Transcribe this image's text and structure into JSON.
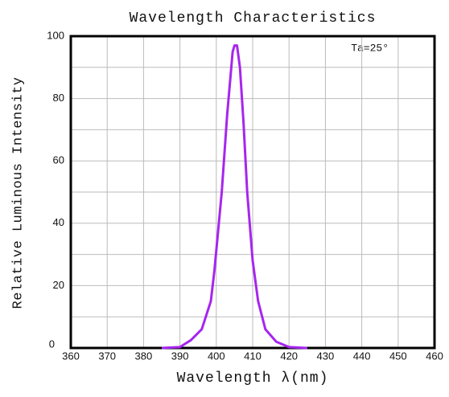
{
  "chart_data": {
    "type": "line",
    "title": "Wavelength Characteristics",
    "annotation": "Ta=25°",
    "x_label": "Wavelength λ(nm)",
    "y_label": "Relative Luminous Intensity",
    "x": [
      385,
      390,
      393,
      396,
      398.5,
      399.5,
      401.5,
      403,
      404.5,
      405,
      405.7,
      406.5,
      407.5,
      408.5,
      410,
      411.5,
      413.5,
      416.5,
      420,
      425
    ],
    "series": [
      {
        "color": "#a626ee",
        "values": [
          0,
          0.3,
          2.5,
          6,
          15,
          25,
          50,
          75,
          95,
          97,
          97,
          90,
          72,
          50,
          28,
          15,
          6,
          2,
          0.3,
          0
        ]
      }
    ],
    "xlim": [
      360,
      460
    ],
    "xticks": [
      360,
      370,
      380,
      390,
      400,
      410,
      420,
      430,
      440,
      450,
      460
    ],
    "ylim": [
      0,
      100
    ],
    "yticks": [
      0,
      20,
      40,
      60,
      80,
      100
    ],
    "y_minor_grid": [
      10,
      30,
      50,
      70,
      90
    ],
    "grid": true
  }
}
